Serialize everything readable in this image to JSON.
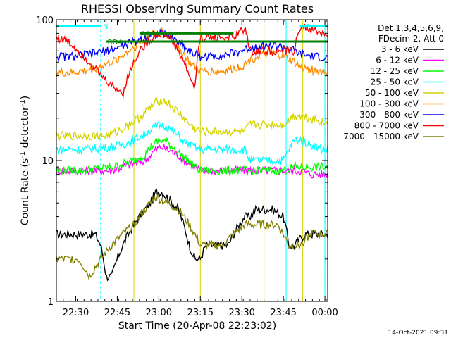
{
  "chart_data": {
    "type": "line",
    "title": "RHESSI Observing Summary Count Rates",
    "xlabel": "Start Time (20-Apr-08 22:23:02)",
    "ylabel_parts": [
      "Count Rate (s",
      "-1",
      " detector",
      "-1",
      ")"
    ],
    "yscale": "log",
    "ylim": [
      1,
      100
    ],
    "xlim_min": [
      0,
      98
    ],
    "x_ticks": [
      {
        "t": 7,
        "label": "22:30"
      },
      {
        "t": 22,
        "label": "22:45"
      },
      {
        "t": 37,
        "label": "23:00"
      },
      {
        "t": 52,
        "label": "23:15"
      },
      {
        "t": 67,
        "label": "23:30"
      },
      {
        "t": 82,
        "label": "23:45"
      },
      {
        "t": 97,
        "label": "00:00"
      }
    ],
    "y_ticks": [
      {
        "v": 1,
        "label": "1"
      },
      {
        "v": 10,
        "label": "10"
      },
      {
        "v": 100,
        "label": "100"
      }
    ],
    "legend_header": [
      "Det 1,3,4,5,6,9,",
      "FDecim 2, Att 0"
    ],
    "series": [
      {
        "name": "3 - 6 keV",
        "color": "#000000",
        "x": [
          0,
          14,
          16,
          18,
          20,
          22,
          24,
          28,
          32,
          34,
          36,
          38,
          40,
          42,
          44,
          46,
          48,
          50,
          52,
          54,
          58,
          62,
          64,
          66,
          68,
          70,
          72,
          74,
          78,
          82,
          84,
          86,
          88,
          90,
          92,
          94,
          96,
          98
        ],
        "y": [
          3,
          3,
          2.5,
          1.5,
          1.5,
          2,
          2.5,
          3.5,
          4.5,
          5,
          6,
          6,
          5.5,
          5,
          4.5,
          3.5,
          2.5,
          2,
          2,
          2.5,
          2.5,
          2.5,
          3,
          3.5,
          4,
          4,
          4.5,
          4.5,
          4.5,
          4,
          2.5,
          2.5,
          2.8,
          3,
          3,
          3,
          3,
          3
        ]
      },
      {
        "name": "6 - 12 keV",
        "color": "#ff00ff",
        "x": [
          0,
          10,
          20,
          24,
          28,
          32,
          34,
          36,
          38,
          40,
          42,
          44,
          46,
          48,
          50,
          52,
          56,
          60,
          66,
          70,
          74,
          78,
          82,
          86,
          88,
          92,
          96,
          98
        ],
        "y": [
          8.5,
          8.5,
          8.5,
          9,
          9.5,
          10,
          11,
          12,
          12.5,
          12,
          11.5,
          11,
          10,
          9.5,
          9,
          8.5,
          8.5,
          8.5,
          8.5,
          8.5,
          8.5,
          8.5,
          8.5,
          8.5,
          8.5,
          8,
          8,
          8
        ]
      },
      {
        "name": "12 - 25 keV",
        "color": "#00ff00",
        "x": [
          0,
          10,
          20,
          24,
          28,
          32,
          34,
          36,
          38,
          40,
          42,
          44,
          46,
          48,
          50,
          52,
          56,
          60,
          66,
          70,
          74,
          78,
          82,
          86,
          88,
          92,
          96,
          98
        ],
        "y": [
          8.5,
          8.5,
          9,
          9.5,
          10,
          11,
          12.5,
          13.5,
          14,
          13.5,
          12.5,
          11.5,
          10.5,
          10,
          9,
          8.5,
          8.5,
          8.5,
          8.5,
          8.5,
          8.5,
          8.5,
          8.5,
          9,
          9,
          9,
          9,
          9
        ]
      },
      {
        "name": "25 - 50 keV",
        "color": "#00ffff",
        "x": [
          0,
          10,
          20,
          24,
          28,
          32,
          34,
          36,
          38,
          40,
          42,
          44,
          46,
          48,
          50,
          52,
          56,
          60,
          64,
          68,
          70,
          74,
          78,
          82,
          86,
          88,
          92,
          96,
          98
        ],
        "y": [
          12,
          12,
          12.5,
          13,
          14,
          15.5,
          16.5,
          17.5,
          18,
          17.5,
          16,
          15,
          13.5,
          13,
          12.5,
          12,
          12,
          12,
          12,
          12,
          10,
          10,
          10,
          10,
          14,
          14,
          13,
          12,
          12
        ]
      },
      {
        "name": "50 - 100 keV",
        "color": "#d4d400",
        "x": [
          0,
          10,
          18,
          22,
          26,
          30,
          32,
          34,
          36,
          38,
          40,
          42,
          44,
          46,
          48,
          50,
          52,
          56,
          60,
          64,
          68,
          70,
          74,
          78,
          82,
          86,
          88,
          92,
          96,
          98
        ],
        "y": [
          15,
          15,
          15,
          16,
          18,
          20,
          22,
          24,
          26,
          27,
          26,
          24,
          22,
          20,
          18,
          17,
          16,
          16,
          16,
          16,
          16,
          18,
          18,
          18,
          18,
          21,
          21,
          20,
          19,
          18
        ]
      },
      {
        "name": "100 - 300 keV",
        "color": "#ff8c00",
        "x": [
          0,
          6,
          12,
          18,
          22,
          26,
          30,
          32,
          34,
          36,
          38,
          40,
          42,
          44,
          46,
          48,
          50,
          52,
          56,
          60,
          64,
          68,
          70,
          74,
          78,
          82,
          86,
          88,
          92,
          96,
          98
        ],
        "y": [
          42,
          42,
          44,
          48,
          52,
          60,
          68,
          74,
          79,
          82,
          82,
          78,
          72,
          64,
          57,
          50,
          46,
          43,
          43,
          43,
          45,
          48,
          52,
          56,
          58,
          55,
          50,
          46,
          44,
          43,
          42
        ]
      },
      {
        "name": "300 - 800 keV",
        "color": "#0000ff",
        "x": [
          0,
          6,
          12,
          18,
          22,
          26,
          30,
          32,
          34,
          36,
          38,
          40,
          42,
          44,
          46,
          48,
          50,
          52,
          56,
          60,
          64,
          68,
          70,
          74,
          78,
          82,
          86,
          88,
          92,
          96,
          98
        ],
        "y": [
          55,
          55,
          57,
          60,
          63,
          68,
          72,
          75,
          78,
          80,
          80,
          78,
          74,
          70,
          65,
          60,
          57,
          55,
          55,
          56,
          58,
          61,
          63,
          65,
          66,
          64,
          60,
          57,
          55,
          54,
          53
        ]
      },
      {
        "name": "800 - 7000 keV",
        "color": "#ff0000",
        "x": [
          0,
          4,
          8,
          12,
          16,
          20,
          24,
          26,
          28,
          30,
          32,
          34,
          36,
          38,
          40,
          42,
          44,
          46,
          48,
          50,
          52,
          56,
          60,
          64,
          66,
          68,
          70,
          74,
          78,
          82,
          86,
          88,
          92,
          96,
          98
        ],
        "y": [
          75,
          70,
          60,
          50,
          40,
          34,
          30,
          40,
          50,
          60,
          66,
          72,
          78,
          80,
          78,
          70,
          60,
          50,
          40,
          32,
          75,
          75,
          75,
          75,
          80,
          88,
          60,
          60,
          60,
          60,
          60,
          90,
          85,
          80,
          78
        ]
      },
      {
        "name": "7000 - 15000 keV",
        "color": "#808000",
        "x": [
          0,
          4,
          8,
          12,
          16,
          20,
          24,
          28,
          32,
          36,
          40,
          44,
          48,
          52,
          56,
          60,
          64,
          68,
          72,
          76,
          80,
          84,
          88,
          92,
          96,
          98
        ],
        "y": [
          2,
          2,
          2,
          1.5,
          2,
          2.5,
          3,
          3.5,
          4.5,
          5.5,
          5,
          4.5,
          3.5,
          2.5,
          2.5,
          2.5,
          3,
          3.5,
          3.5,
          3.5,
          3.5,
          2.5,
          2.5,
          3,
          3,
          3
        ]
      }
    ],
    "attenuator_lines": [
      {
        "name": "N",
        "color": "#00ffff",
        "x": [
          0,
          16
        ],
        "y": 90
      },
      {
        "name": "RD4",
        "color": "#008000",
        "x": [
          18,
          98
        ],
        "y": 70
      },
      {
        "name": "RD",
        "color": "#008000",
        "x": [
          30,
          64
        ],
        "y": 80
      },
      {
        "name": "F",
        "color": "#00ffff",
        "x": [
          88,
          98
        ],
        "y": 90
      }
    ],
    "vertical_markers": {
      "solid_yellow": [
        28,
        52,
        75,
        89
      ],
      "solid_cyan": [
        83,
        97
      ],
      "dashed_cyan": [
        0,
        16,
        97
      ]
    },
    "footer_timestamp": "14-Oct-2021 09:31",
    "grid": false,
    "legend_position": "right"
  }
}
